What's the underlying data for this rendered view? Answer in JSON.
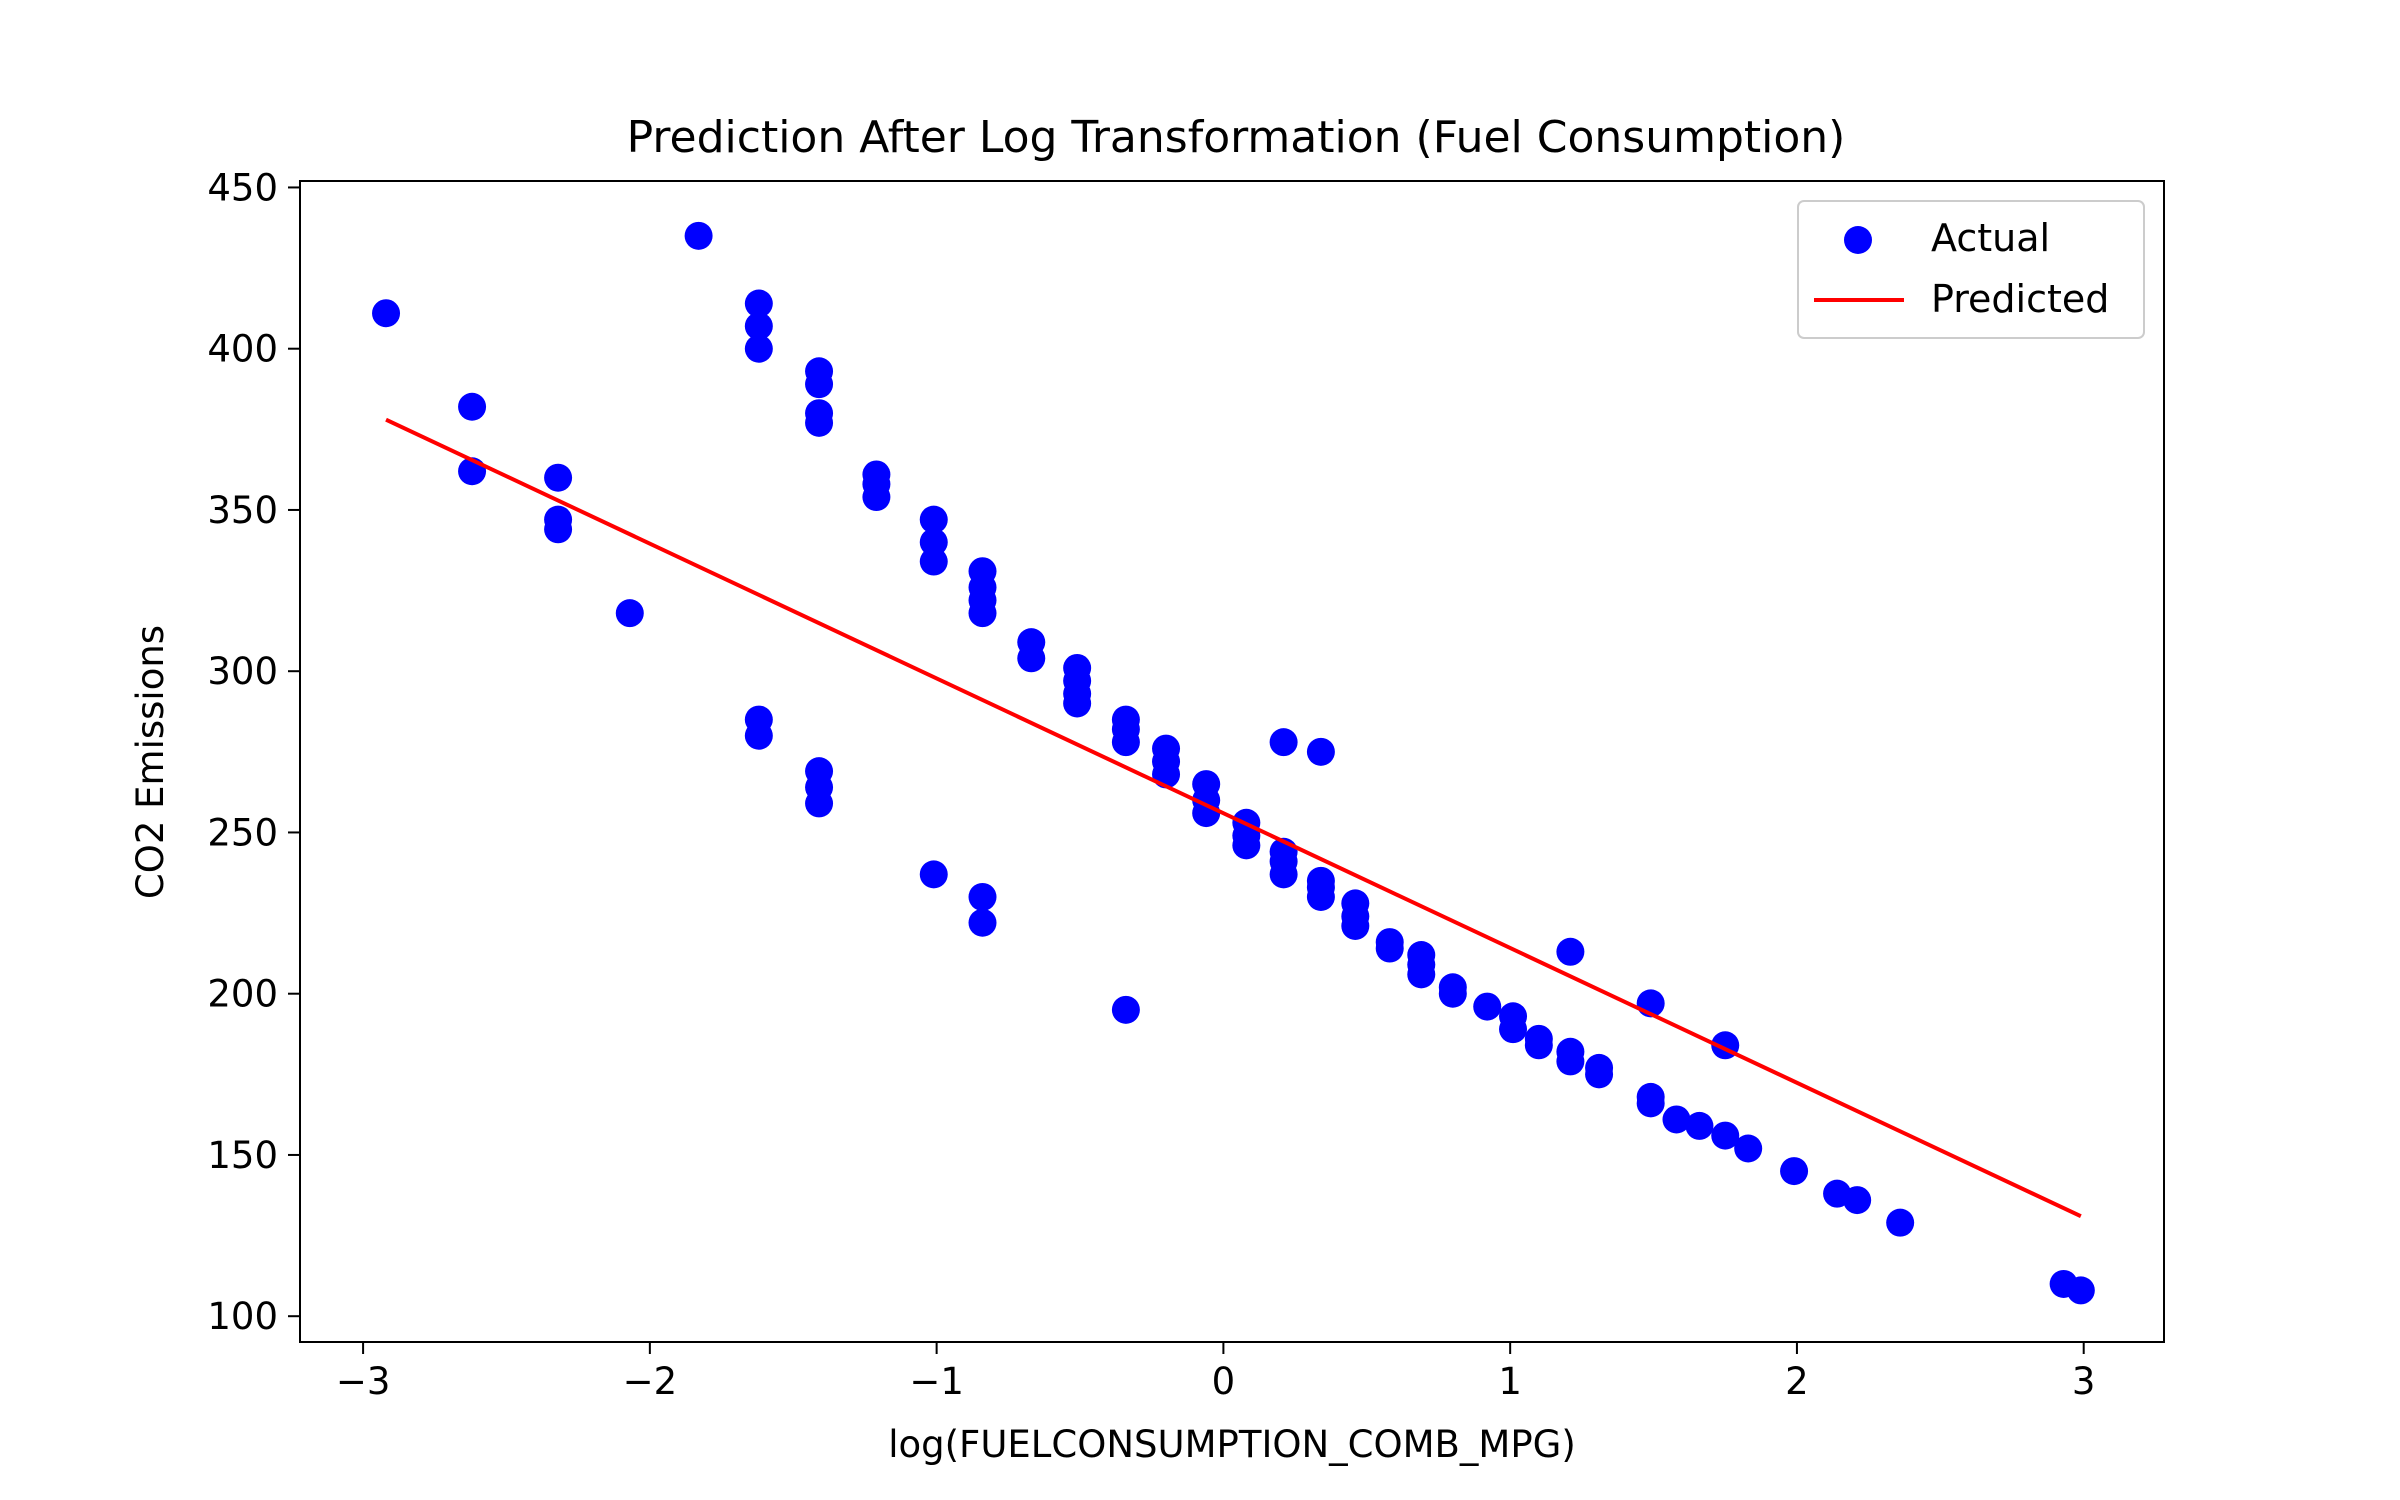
{
  "chart_data": {
    "type": "scatter",
    "title": "Prediction After Log Transformation (Fuel Consumption)",
    "xlabel": "log(FUELCONSUMPTION_COMB_MPG)",
    "ylabel": "CO2 Emissions",
    "xlim": [
      -3.22,
      3.28
    ],
    "ylim": [
      92,
      452
    ],
    "xticks": [
      -3,
      -2,
      -1,
      0,
      1,
      2,
      3
    ],
    "xtick_labels": [
      "−3",
      "−2",
      "−1",
      "0",
      "1",
      "2",
      "3"
    ],
    "yticks": [
      100,
      150,
      200,
      250,
      300,
      350,
      400,
      450
    ],
    "ytick_labels": [
      "100",
      "150",
      "200",
      "250",
      "300",
      "350",
      "400",
      "450"
    ],
    "grid": false,
    "legend_position": "top-right",
    "series": [
      {
        "name": "Actual",
        "kind": "scatter",
        "color": "#0000ff",
        "points": [
          [
            -2.92,
            411
          ],
          [
            -2.62,
            382
          ],
          [
            -2.62,
            362
          ],
          [
            -2.32,
            360
          ],
          [
            -2.32,
            347
          ],
          [
            -2.32,
            344
          ],
          [
            -2.07,
            318
          ],
          [
            -1.83,
            435
          ],
          [
            -1.62,
            414
          ],
          [
            -1.62,
            407
          ],
          [
            -1.62,
            400
          ],
          [
            -1.62,
            285
          ],
          [
            -1.62,
            280
          ],
          [
            -1.41,
            393
          ],
          [
            -1.41,
            389
          ],
          [
            -1.41,
            380
          ],
          [
            -1.41,
            377
          ],
          [
            -1.41,
            269
          ],
          [
            -1.41,
            264
          ],
          [
            -1.41,
            259
          ],
          [
            -1.21,
            361
          ],
          [
            -1.21,
            358
          ],
          [
            -1.21,
            354
          ],
          [
            -1.01,
            347
          ],
          [
            -1.01,
            340
          ],
          [
            -1.01,
            334
          ],
          [
            -1.01,
            237
          ],
          [
            -0.84,
            331
          ],
          [
            -0.84,
            326
          ],
          [
            -0.84,
            322
          ],
          [
            -0.84,
            318
          ],
          [
            -0.84,
            230
          ],
          [
            -0.84,
            222
          ],
          [
            -0.67,
            309
          ],
          [
            -0.67,
            304
          ],
          [
            -0.51,
            301
          ],
          [
            -0.51,
            297
          ],
          [
            -0.51,
            293
          ],
          [
            -0.51,
            290
          ],
          [
            -0.34,
            285
          ],
          [
            -0.34,
            282
          ],
          [
            -0.34,
            278
          ],
          [
            -0.34,
            195
          ],
          [
            -0.2,
            276
          ],
          [
            -0.2,
            272
          ],
          [
            -0.2,
            268
          ],
          [
            -0.06,
            265
          ],
          [
            -0.06,
            260
          ],
          [
            -0.06,
            256
          ],
          [
            0.08,
            253
          ],
          [
            0.08,
            249
          ],
          [
            0.08,
            246
          ],
          [
            0.21,
            278
          ],
          [
            0.21,
            244
          ],
          [
            0.21,
            241
          ],
          [
            0.21,
            237
          ],
          [
            0.34,
            275
          ],
          [
            0.34,
            235
          ],
          [
            0.34,
            233
          ],
          [
            0.34,
            230
          ],
          [
            0.46,
            228
          ],
          [
            0.46,
            224
          ],
          [
            0.46,
            221
          ],
          [
            0.58,
            216
          ],
          [
            0.58,
            214
          ],
          [
            0.69,
            212
          ],
          [
            0.69,
            209
          ],
          [
            0.69,
            206
          ],
          [
            0.8,
            202
          ],
          [
            0.8,
            200
          ],
          [
            0.92,
            196
          ],
          [
            1.01,
            193
          ],
          [
            1.01,
            189
          ],
          [
            1.1,
            186
          ],
          [
            1.1,
            184
          ],
          [
            1.21,
            213
          ],
          [
            1.21,
            182
          ],
          [
            1.21,
            179
          ],
          [
            1.31,
            177
          ],
          [
            1.31,
            175
          ],
          [
            1.49,
            197
          ],
          [
            1.49,
            168
          ],
          [
            1.49,
            166
          ],
          [
            1.58,
            161
          ],
          [
            1.66,
            159
          ],
          [
            1.75,
            184
          ],
          [
            1.75,
            156
          ],
          [
            1.83,
            152
          ],
          [
            1.99,
            145
          ],
          [
            2.14,
            138
          ],
          [
            2.21,
            136
          ],
          [
            2.36,
            129
          ],
          [
            2.93,
            110
          ],
          [
            2.99,
            108
          ]
        ]
      },
      {
        "name": "Predicted",
        "kind": "line",
        "color": "#ff0000",
        "points": [
          [
            -2.92,
            378
          ],
          [
            2.99,
            131
          ]
        ]
      }
    ]
  }
}
